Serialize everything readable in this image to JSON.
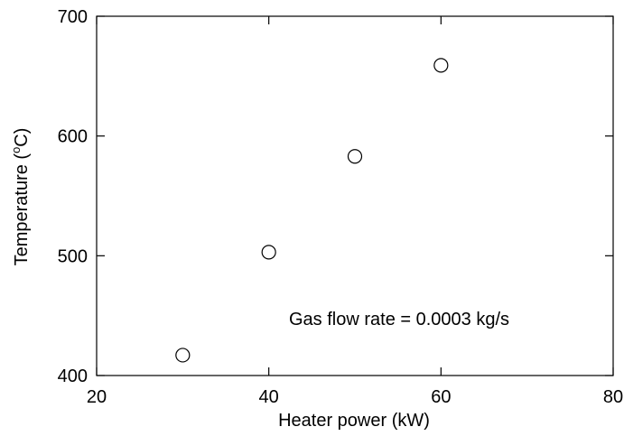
{
  "chart_data": {
    "type": "scatter",
    "title": "",
    "xlabel": "Heater power (kW)",
    "ylabel_main": "Temperature (",
    "ylabel_sup": "o",
    "ylabel_end": "C)",
    "xlim": [
      20,
      80
    ],
    "ylim": [
      400,
      700
    ],
    "x_ticks": [
      20,
      40,
      60,
      80
    ],
    "y_ticks": [
      400,
      500,
      600,
      700
    ],
    "x_tick_labels": [
      "20",
      "40",
      "60",
      "80"
    ],
    "y_tick_labels": [
      "400",
      "500",
      "600",
      "700"
    ],
    "grid": false,
    "marker": "open-circle",
    "series": [
      {
        "x": [
          30,
          40,
          50,
          60
        ],
        "y": [
          417,
          503,
          583,
          659
        ]
      }
    ],
    "annotation": "Gas flow rate = 0.0003 kg/s"
  }
}
